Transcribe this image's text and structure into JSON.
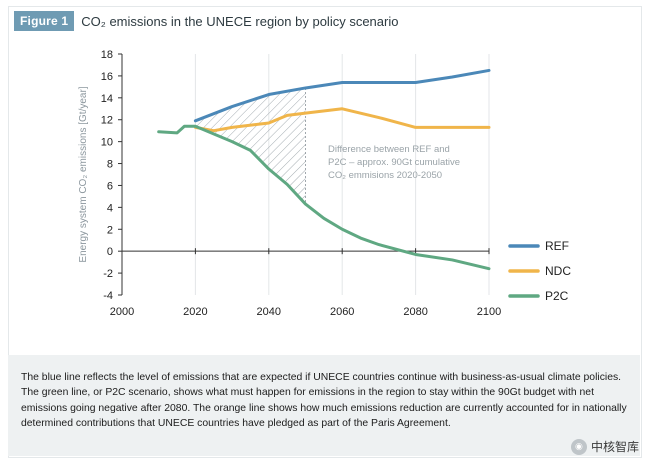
{
  "figure": {
    "badge": "Figure 1",
    "title": "CO₂ emissions in the UNECE region by policy scenario"
  },
  "chart_data": {
    "type": "line",
    "title": "CO₂ emissions in the UNECE region by policy scenario",
    "xlabel": "",
    "ylabel": "Energy system CO₂ emissions [Gt/year]",
    "xlim": [
      2000,
      2100
    ],
    "ylim": [
      -4,
      18
    ],
    "xticks": [
      2000,
      2020,
      2040,
      2060,
      2080,
      2100
    ],
    "yticks": [
      -4,
      -2,
      0,
      2,
      4,
      6,
      8,
      10,
      12,
      14,
      16,
      18
    ],
    "legend_position": "right",
    "series": [
      {
        "name": "REF",
        "color": "#4b88b8",
        "points": [
          [
            2020,
            11.9
          ],
          [
            2030,
            13.2
          ],
          [
            2040,
            14.3
          ],
          [
            2050,
            14.9
          ],
          [
            2060,
            15.4
          ],
          [
            2080,
            15.4
          ],
          [
            2090,
            15.9
          ],
          [
            2100,
            16.5
          ]
        ]
      },
      {
        "name": "NDC",
        "color": "#f0b54a",
        "points": [
          [
            2020,
            11.3
          ],
          [
            2025,
            11.0
          ],
          [
            2030,
            11.3
          ],
          [
            2040,
            11.7
          ],
          [
            2045,
            12.4
          ],
          [
            2050,
            12.6
          ],
          [
            2060,
            13.0
          ],
          [
            2070,
            12.2
          ],
          [
            2080,
            11.3
          ],
          [
            2090,
            11.3
          ],
          [
            2100,
            11.3
          ]
        ]
      },
      {
        "name": "P2C",
        "color": "#5fa882",
        "points": [
          [
            2010,
            10.9
          ],
          [
            2015,
            10.8
          ],
          [
            2017,
            11.4
          ],
          [
            2020,
            11.4
          ],
          [
            2030,
            10.0
          ],
          [
            2035,
            9.2
          ],
          [
            2040,
            7.5
          ],
          [
            2045,
            6.1
          ],
          [
            2050,
            4.3
          ],
          [
            2055,
            3.0
          ],
          [
            2060,
            2.0
          ],
          [
            2065,
            1.2
          ],
          [
            2070,
            0.6
          ],
          [
            2080,
            -0.3
          ],
          [
            2090,
            -0.8
          ],
          [
            2100,
            -1.6
          ]
        ]
      }
    ],
    "shaded_region": {
      "between": [
        "REF",
        "P2C"
      ],
      "x_range": [
        2020,
        2050
      ],
      "pattern": "hatched"
    },
    "annotation": [
      "Difference between REF and",
      "P2C – approx. 90Gt cumulative",
      "CO₂ emmisions 2020-2050"
    ]
  },
  "caption": "The blue line reflects the level of emissions that are expected if UNECE countries continue with business-as-usual climate policies. The green line, or P2C scenario, shows what must happen for emissions in the region to stay within the 90Gt budget with net emissions going negative after 2080. The orange line shows how much emissions reduction are currently accounted for in nationally determined contributions that UNECE countries have pledged as part of the Paris Agreement.",
  "watermark": {
    "text": "中核智库",
    "icon": "wechat-icon"
  }
}
